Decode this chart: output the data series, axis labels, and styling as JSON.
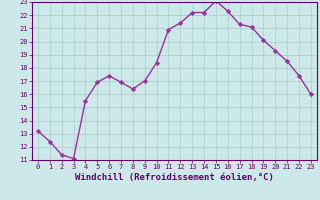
{
  "x": [
    0,
    1,
    2,
    3,
    4,
    5,
    6,
    7,
    8,
    9,
    10,
    11,
    12,
    13,
    14,
    15,
    16,
    17,
    18,
    19,
    20,
    21,
    22,
    23
  ],
  "y": [
    13.2,
    12.4,
    11.4,
    11.1,
    15.5,
    16.9,
    17.4,
    16.9,
    16.4,
    17.0,
    18.4,
    20.9,
    21.4,
    22.2,
    22.2,
    23.1,
    22.3,
    21.3,
    21.1,
    20.1,
    19.3,
    18.5,
    17.4,
    16.0
  ],
  "line_color": "#993399",
  "marker": "D",
  "marker_size": 2.2,
  "line_width": 1.0,
  "bg_color": "#cce8e8",
  "grid_color": "#aacccc",
  "xlabel": "Windchill (Refroidissement éolien,°C)",
  "ylim": [
    11,
    23
  ],
  "xlim": [
    -0.5,
    23.5
  ],
  "yticks": [
    11,
    12,
    13,
    14,
    15,
    16,
    17,
    18,
    19,
    20,
    21,
    22,
    23
  ],
  "xticks": [
    0,
    1,
    2,
    3,
    4,
    5,
    6,
    7,
    8,
    9,
    10,
    11,
    12,
    13,
    14,
    15,
    16,
    17,
    18,
    19,
    20,
    21,
    22,
    23
  ],
  "tick_label_fontsize": 5.0,
  "xlabel_fontsize": 6.5,
  "axis_color": "#660066"
}
